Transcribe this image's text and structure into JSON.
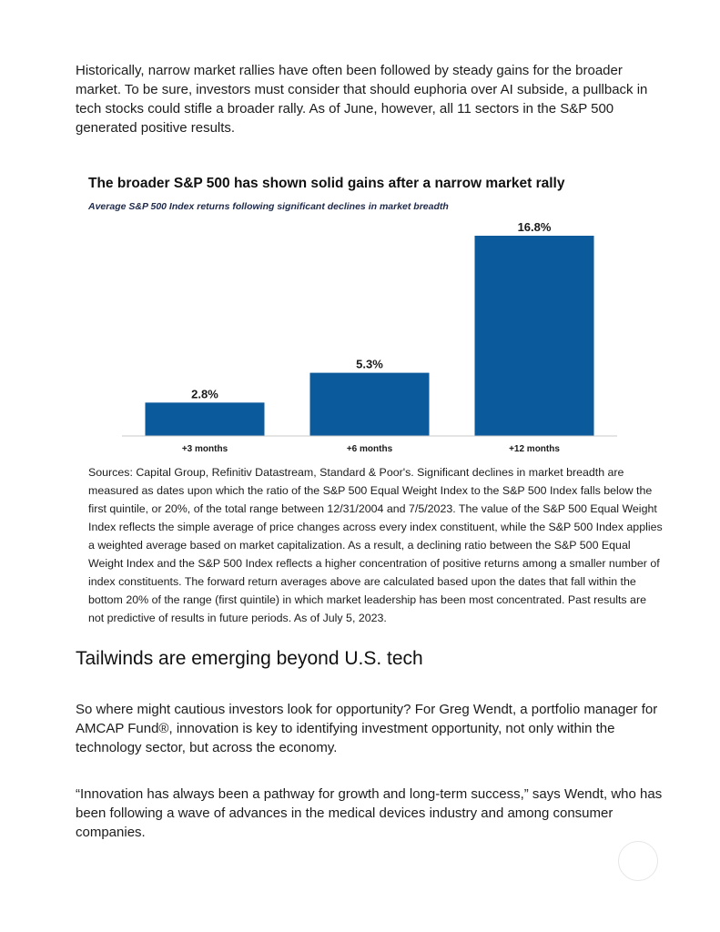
{
  "intro_paragraph": "Historically, narrow market rallies have often been followed by steady gains for the broader market. To be sure, investors must consider that should euphoria over AI subside, a pullback in tech stocks could stifle a broader rally. As of June, however, all 11 sectors in the S&P 500 generated positive results.",
  "chart_data": {
    "type": "bar",
    "title": "The broader S&P 500 has shown solid gains after a narrow market rally",
    "subtitle": "Average S&P 500 Index returns following significant declines in market breadth",
    "categories": [
      "+3 months",
      "+6 months",
      "+12 months"
    ],
    "values": [
      2.8,
      5.3,
      16.8
    ],
    "value_labels": [
      "2.8%",
      "5.3%",
      "16.8%"
    ],
    "ylim": [
      0,
      16.8
    ],
    "grid": false,
    "bar_color": "#0a5a9c"
  },
  "sources_note": "Sources: Capital Group, Refinitiv Datastream, Standard & Poor's. Significant declines in market breadth are measured as dates upon which the ratio of the S&P 500 Equal Weight Index to the S&P 500 Index falls below the first quintile, or 20%, of the total range between 12/31/2004 and 7/5/2023. The value of the S&P 500 Equal Weight Index reflects the simple average of price changes across every index constituent, while the S&P 500 Index applies a weighted average based on market capitalization. As a result, a declining ratio between the S&P 500 Equal Weight Index and the S&P 500 Index reflects a higher concentration of positive returns among a smaller number of index constituents. The forward return averages above are calculated based upon the dates that fall within the bottom 20% of the range (first quintile) in which market leadership has been most concentrated. Past results are not predictive of results in future periods. As of July 5, 2023.",
  "section_heading": "Tailwinds are emerging beyond U.S. tech",
  "paragraph_2": "So where might cautious investors look for opportunity? For Greg Wendt, a portfolio manager for AMCAP Fund®, innovation is key to identifying investment opportunity, not only within the technology sector, but across the economy.",
  "paragraph_3": "“Innovation has always been a pathway for growth and long-term success,” says Wendt, who has been following a wave of advances in the medical devices industry and among consumer companies."
}
